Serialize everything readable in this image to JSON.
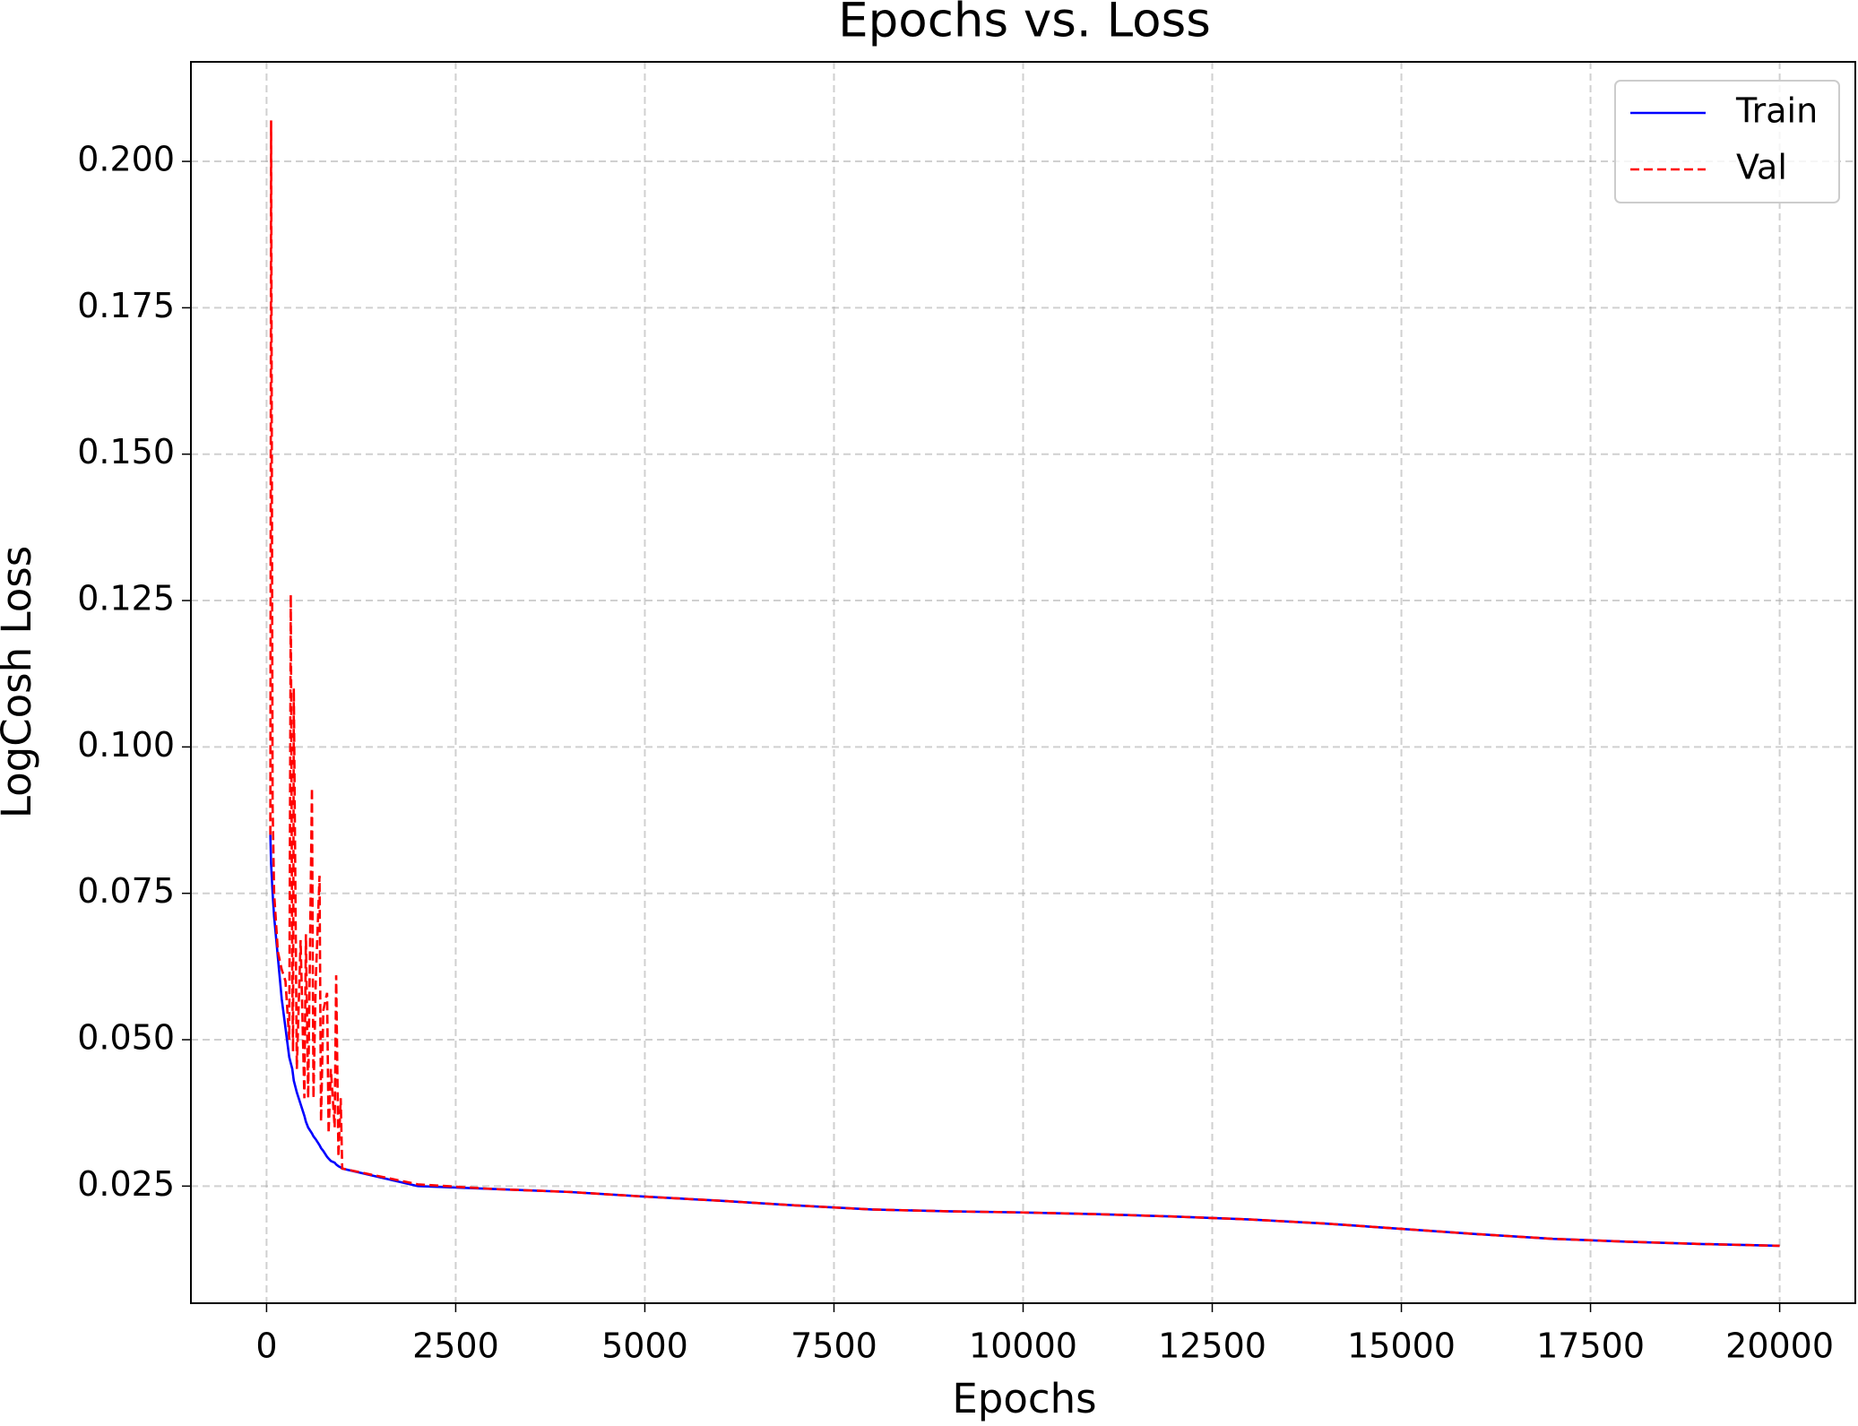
{
  "chart_data": {
    "type": "line",
    "title": "Epochs vs. Loss",
    "x_label": "Epochs",
    "y_label": "LogCosh Loss",
    "x": [
      50,
      60,
      80,
      100,
      150,
      200,
      250,
      300,
      320,
      340,
      350,
      360,
      400,
      450,
      500,
      520,
      550,
      600,
      620,
      650,
      700,
      720,
      750,
      800,
      820,
      850,
      900,
      920,
      950,
      980,
      1000,
      2000,
      3000,
      4000,
      5000,
      6000,
      7000,
      8000,
      9000,
      10000,
      11000,
      12000,
      13000,
      14000,
      15000,
      16000,
      17000,
      18000,
      19000,
      20000
    ],
    "series": [
      {
        "name": "Train",
        "color": "#0000ff",
        "dash": false,
        "values": [
          0.085,
          0.08,
          0.075,
          0.071,
          0.064,
          0.057,
          0.052,
          0.047,
          0.046,
          0.045,
          0.044,
          0.043,
          0.041,
          0.039,
          0.037,
          0.036,
          0.035,
          0.034,
          0.0335,
          0.033,
          0.032,
          0.0315,
          0.031,
          0.03,
          0.0297,
          0.0293,
          0.029,
          0.0287,
          0.0284,
          0.0282,
          0.028,
          0.025,
          0.0245,
          0.024,
          0.0232,
          0.0225,
          0.0217,
          0.021,
          0.0207,
          0.0205,
          0.0202,
          0.0198,
          0.0193,
          0.0186,
          0.0177,
          0.0168,
          0.016,
          0.0155,
          0.0151,
          0.0148
        ]
      },
      {
        "name": "Val",
        "color": "#ff0000",
        "dash": true,
        "values": [
          0.085,
          0.207,
          0.09,
          0.075,
          0.065,
          0.062,
          0.06,
          0.05,
          0.126,
          0.06,
          0.048,
          0.11,
          0.045,
          0.067,
          0.04,
          0.068,
          0.04,
          0.093,
          0.04,
          0.06,
          0.078,
          0.036,
          0.055,
          0.058,
          0.034,
          0.045,
          0.035,
          0.061,
          0.03,
          0.04,
          0.028,
          0.0253,
          0.0245,
          0.024,
          0.0232,
          0.0225,
          0.0217,
          0.021,
          0.0207,
          0.0205,
          0.0202,
          0.0198,
          0.0193,
          0.0186,
          0.0177,
          0.0168,
          0.016,
          0.0155,
          0.0151,
          0.0148
        ]
      }
    ],
    "xlim": [
      -1000,
      21000
    ],
    "ylim": [
      0.005,
      0.217
    ],
    "xticks": [
      0,
      2500,
      5000,
      7500,
      10000,
      12500,
      15000,
      17500,
      20000
    ],
    "yticks": [
      {
        "value": 0.025,
        "label": "0.025"
      },
      {
        "value": 0.05,
        "label": "0.050"
      },
      {
        "value": 0.075,
        "label": "0.075"
      },
      {
        "value": 0.1,
        "label": "0.100"
      },
      {
        "value": 0.125,
        "label": "0.125"
      },
      {
        "value": 0.15,
        "label": "0.150"
      },
      {
        "value": 0.175,
        "label": "0.175"
      },
      {
        "value": 0.2,
        "label": "0.200"
      }
    ],
    "grid": true,
    "legend": "upper right"
  }
}
